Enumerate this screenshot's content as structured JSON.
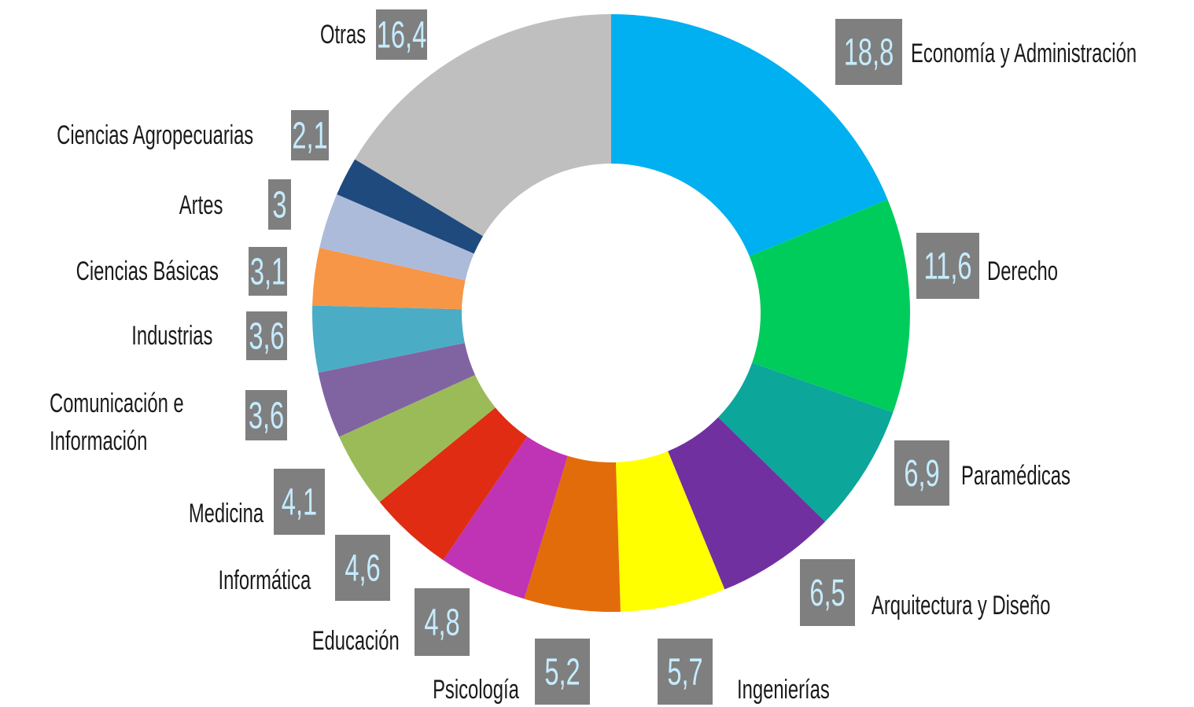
{
  "chart_data": {
    "type": "donut",
    "categories": [
      "Economía y Administración",
      "Derecho",
      "Paramédicas",
      "Arquitectura y Diseño",
      "Ingenierías",
      "Psicología",
      "Educación",
      "Informática",
      "Medicina",
      "Comunicación e Información",
      "Industrias",
      "Ciencias Básicas",
      "Artes",
      "Ciencias Agropecuarias",
      "Otras"
    ],
    "values": [
      18.8,
      11.6,
      6.9,
      6.5,
      5.7,
      5.2,
      4.8,
      4.6,
      4.1,
      3.6,
      3.6,
      3.1,
      3,
      2.1,
      16.4
    ],
    "value_labels": [
      "18,8",
      "11,6",
      "6,9",
      "6,5",
      "5,7",
      "5,2",
      "4,8",
      "4,6",
      "4,1",
      "3,6",
      "3,6",
      "3,1",
      "3",
      "2,1",
      "16,4"
    ],
    "colors": [
      "#00b0f0",
      "#00cc5c",
      "#0ca69a",
      "#7030a0",
      "#ffff00",
      "#e36c0a",
      "#bf33b5",
      "#e02c12",
      "#9bbb59",
      "#8064a2",
      "#4bacc6",
      "#f79646",
      "#adbbdb",
      "#1f4a7d",
      "#bfbfbf"
    ]
  }
}
